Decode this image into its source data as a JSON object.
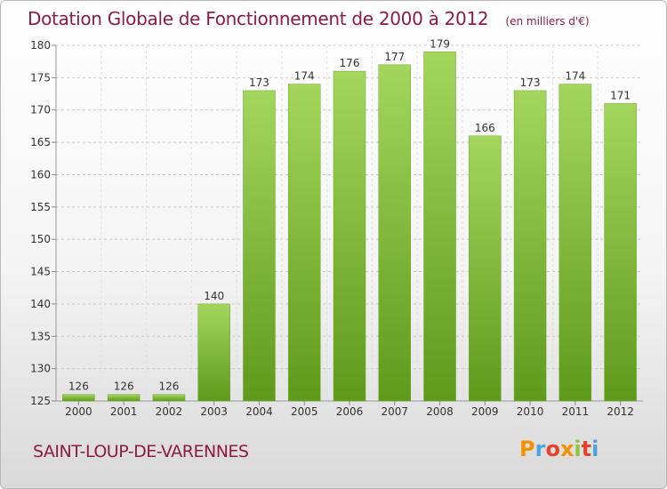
{
  "chart_data": {
    "type": "bar",
    "title": "Dotation Globale de Fonctionnement de 2000 à 2012",
    "unit_label": "(en milliers d'€)",
    "categories": [
      "2000",
      "2001",
      "2002",
      "2003",
      "2004",
      "2005",
      "2006",
      "2007",
      "2008",
      "2009",
      "2010",
      "2011",
      "2012"
    ],
    "values": [
      126,
      126,
      126,
      140,
      173,
      174,
      176,
      177,
      179,
      166,
      173,
      174,
      171
    ],
    "ylim": [
      125,
      180
    ],
    "yticks": [
      125,
      130,
      135,
      140,
      145,
      150,
      155,
      160,
      165,
      170,
      175,
      180
    ],
    "xlabel": "",
    "ylabel": "",
    "grid": "horizontal dashed",
    "legend": "none",
    "bar_color_light": "#a4d65e",
    "bar_color_dark": "#5f9a1b"
  },
  "commune": "SAINT-LOUP-DE-VARENNES",
  "brand": {
    "letters": [
      "P",
      "r",
      "o",
      "x",
      "i",
      "t",
      "i"
    ],
    "colors": [
      "#f39200",
      "#4aa3df",
      "#e8412c",
      "#f39200",
      "#8cc63f",
      "#e8412c",
      "#4aa3df"
    ]
  }
}
